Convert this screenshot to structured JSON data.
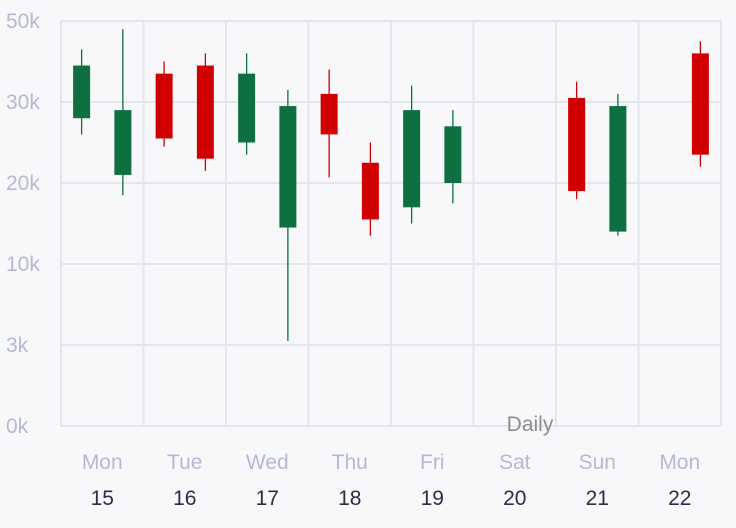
{
  "chart_data": {
    "type": "candlestick",
    "xlabel": "Daily",
    "y_ticks": [
      {
        "value": 0,
        "label": "0k"
      },
      {
        "value": 1,
        "label": "3k"
      },
      {
        "value": 2,
        "label": "10k"
      },
      {
        "value": 3,
        "label": "20k"
      },
      {
        "value": 4,
        "label": "30k"
      },
      {
        "value": 5,
        "label": "50k"
      }
    ],
    "ylim": [
      0,
      5
    ],
    "x_ticks": [
      {
        "day": "Mon",
        "date": "15"
      },
      {
        "day": "Tue",
        "date": "16"
      },
      {
        "day": "Wed",
        "date": "17"
      },
      {
        "day": "Thu",
        "date": "18"
      },
      {
        "day": "Fri",
        "date": "19"
      },
      {
        "day": "Sat",
        "date": "20"
      },
      {
        "day": "Sun",
        "date": "21"
      },
      {
        "day": "Mon",
        "date": "22"
      }
    ],
    "colors": {
      "up": "#0e7040",
      "down": "#d10000"
    },
    "candles": [
      {
        "slot": 0.25,
        "open": 3.8,
        "close": 4.45,
        "high": 4.65,
        "low": 3.6,
        "dir": "up"
      },
      {
        "slot": 0.75,
        "open": 3.1,
        "close": 3.9,
        "high": 4.9,
        "low": 2.85,
        "dir": "up"
      },
      {
        "slot": 1.25,
        "open": 4.35,
        "close": 3.55,
        "high": 4.5,
        "low": 3.45,
        "dir": "down"
      },
      {
        "slot": 1.75,
        "open": 4.45,
        "close": 3.3,
        "high": 4.6,
        "low": 3.15,
        "dir": "down"
      },
      {
        "slot": 2.25,
        "open": 3.5,
        "close": 4.35,
        "high": 4.6,
        "low": 3.35,
        "dir": "up"
      },
      {
        "slot": 2.75,
        "open": 2.45,
        "close": 3.95,
        "high": 4.15,
        "low": 1.05,
        "dir": "up"
      },
      {
        "slot": 3.25,
        "open": 4.1,
        "close": 3.6,
        "high": 4.4,
        "low": 3.07,
        "dir": "down"
      },
      {
        "slot": 3.75,
        "open": 3.25,
        "close": 2.55,
        "high": 3.5,
        "low": 2.35,
        "dir": "down"
      },
      {
        "slot": 4.25,
        "open": 2.7,
        "close": 3.9,
        "high": 4.2,
        "low": 2.5,
        "dir": "up"
      },
      {
        "slot": 4.75,
        "open": 3.0,
        "close": 3.7,
        "high": 3.9,
        "low": 2.75,
        "dir": "up"
      },
      {
        "slot": 6.25,
        "open": 4.05,
        "close": 2.9,
        "high": 4.25,
        "low": 2.8,
        "dir": "down"
      },
      {
        "slot": 6.75,
        "open": 2.4,
        "close": 3.95,
        "high": 4.1,
        "low": 2.35,
        "dir": "up"
      },
      {
        "slot": 7.75,
        "open": 4.6,
        "close": 3.35,
        "high": 4.75,
        "low": 3.2,
        "dir": "down"
      }
    ]
  }
}
